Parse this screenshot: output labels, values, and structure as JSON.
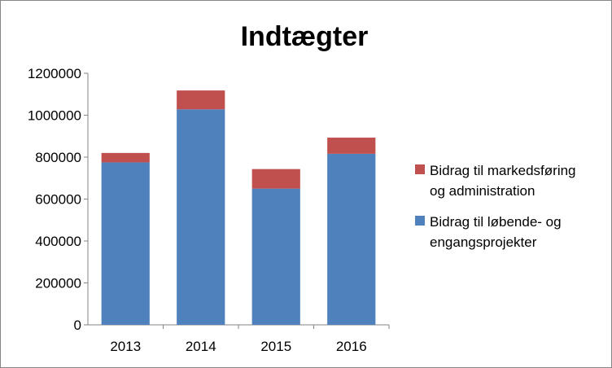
{
  "chart_data": {
    "type": "bar",
    "stacked": true,
    "title": "Indtægter",
    "categories": [
      "2013",
      "2014",
      "2015",
      "2016"
    ],
    "series": [
      {
        "name": "Bidrag til løbende- og engangsprojekter",
        "legend_lines": [
          "Bidrag til løbende- og",
          "engangsprojekter"
        ],
        "color": "#4F81BD",
        "values": [
          775000,
          1028000,
          650000,
          816000
        ]
      },
      {
        "name": "Bidrag til markedsføring og administration",
        "legend_lines": [
          "Bidrag til markedsføring",
          "og administration"
        ],
        "color": "#C0504D",
        "values": [
          45000,
          90000,
          93000,
          77000
        ]
      }
    ],
    "ylim": [
      0,
      1200000
    ],
    "yticks": [
      "0",
      "200000",
      "400000",
      "600000",
      "800000",
      "1000000",
      "1200000"
    ],
    "grid": false,
    "legend_position": "right"
  }
}
